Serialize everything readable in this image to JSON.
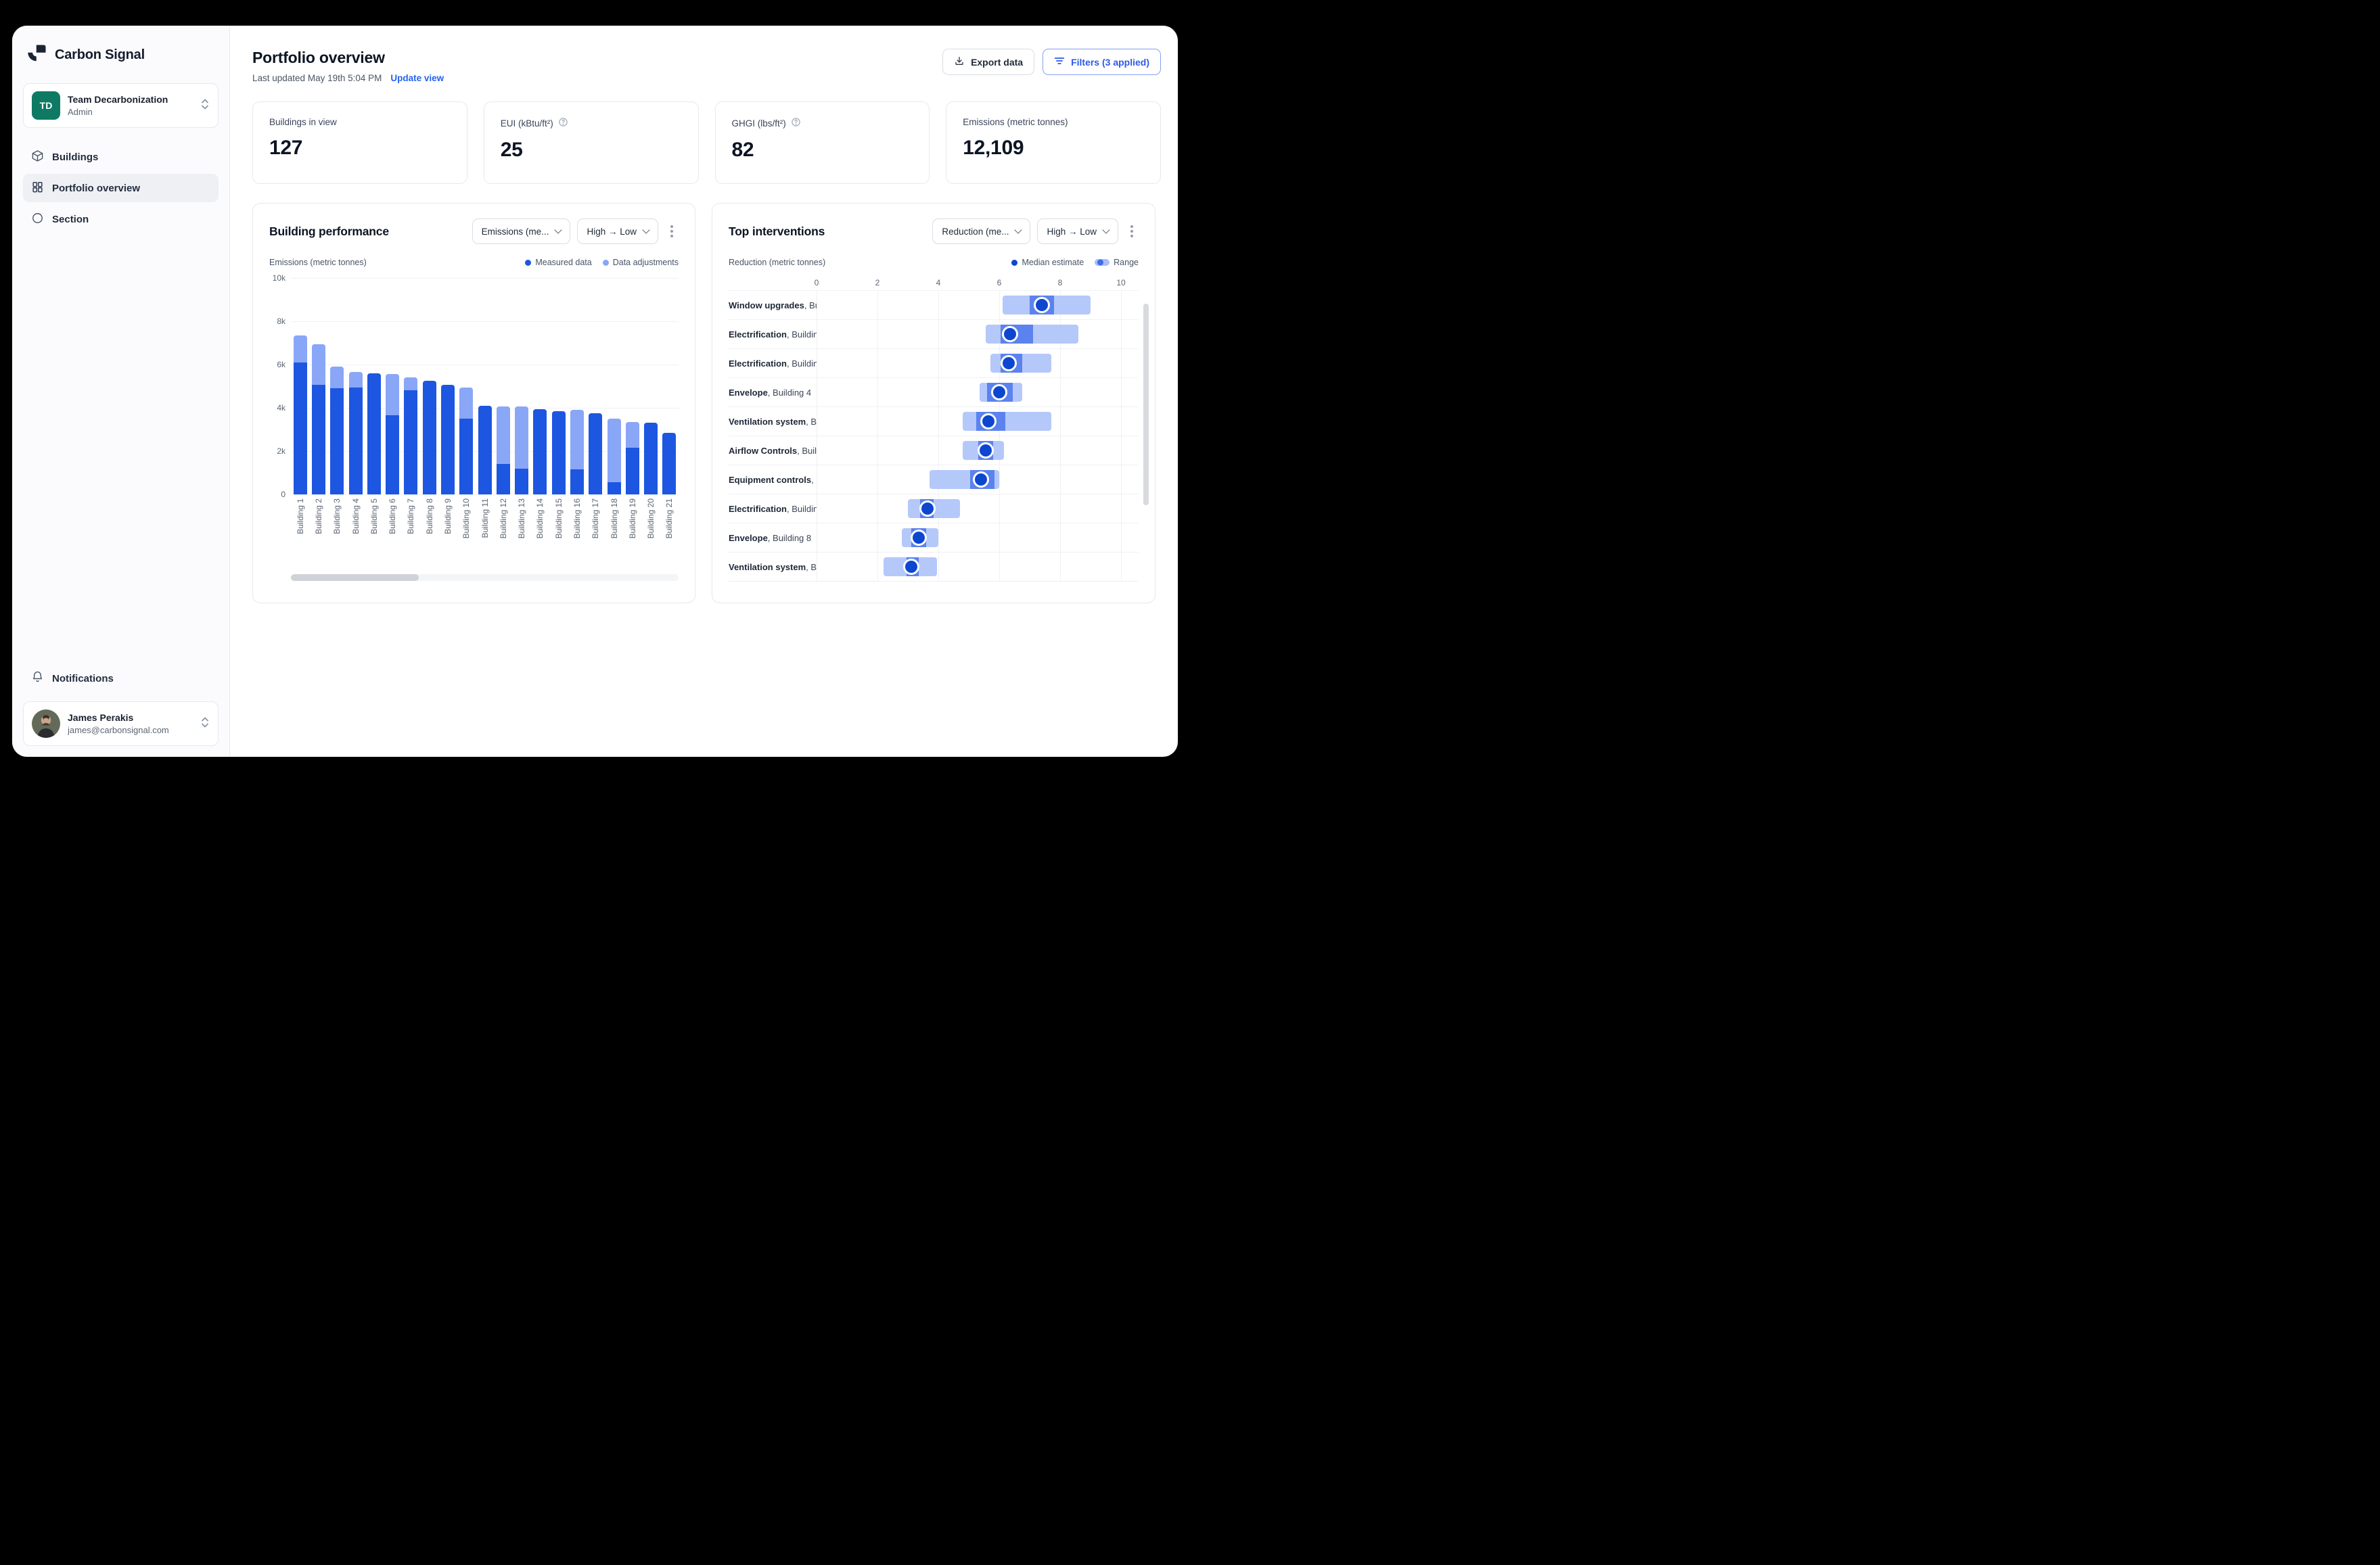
{
  "sidebar": {
    "brand": "Carbon Signal",
    "team": {
      "initials": "TD",
      "name": "Team Decarbonization",
      "role": "Admin"
    },
    "nav": [
      {
        "label": "Buildings",
        "active": false
      },
      {
        "label": "Portfolio overview",
        "active": true
      },
      {
        "label": "Section",
        "active": false
      }
    ],
    "notifications_label": "Notifications",
    "user": {
      "name": "James Perakis",
      "email": "james@carbonsignal.com"
    }
  },
  "header": {
    "title": "Portfolio overview",
    "last_updated": "Last updated May 19th 5:04 PM",
    "update_view_label": "Update view",
    "export_label": "Export data",
    "filters_label": "Filters (3 applied)"
  },
  "stats": [
    {
      "label": "Buildings in view",
      "value": "127"
    },
    {
      "label": "EUI (kBtu/ft²)",
      "value": "25"
    },
    {
      "label": "GHGI (lbs/ft²)",
      "value": "82"
    },
    {
      "label": "Emissions (metric tonnes)",
      "value": "12,109"
    }
  ],
  "performance_panel": {
    "title": "Building performance",
    "metric_dropdown": "Emissions (me...",
    "sort_dropdown": "High → Low",
    "axis_label": "Emissions (metric tonnes)",
    "legend": [
      {
        "label": "Measured data",
        "color": "#1d56e0"
      },
      {
        "label": "Data adjustments",
        "color": "#8aa6f7"
      }
    ]
  },
  "interventions_panel": {
    "title": "Top interventions",
    "metric_dropdown": "Reduction (me...",
    "sort_dropdown": "High → Low",
    "axis_label": "Reduction (metric tonnes)",
    "legend_median": "Median estimate",
    "legend_range": "Range"
  },
  "chart_data": [
    {
      "type": "bar",
      "title": "Building performance",
      "ylabel": "Emissions (metric tonnes)",
      "ylim": [
        0,
        10000
      ],
      "yticks": [
        {
          "v": 10000,
          "label": "10k"
        },
        {
          "v": 8000,
          "label": "8k"
        },
        {
          "v": 6000,
          "label": "6k"
        },
        {
          "v": 4000,
          "label": "4k"
        },
        {
          "v": 2000,
          "label": "2k"
        },
        {
          "v": 0,
          "label": "0"
        }
      ],
      "categories": [
        "Building 1",
        "Building 2",
        "Building 3",
        "Building 4",
        "Building 5",
        "Building 6",
        "Building 7",
        "Building 8",
        "Building 9",
        "Building 10",
        "Building 11",
        "Building 12",
        "Building 13",
        "Building 14",
        "Building 15",
        "Building 16",
        "Building 17",
        "Building 18",
        "Building 19",
        "Building 20",
        "Building 21"
      ],
      "series": [
        {
          "name": "Measured data",
          "values": [
            6100,
            5050,
            4900,
            4950,
            5600,
            3650,
            4800,
            5250,
            5050,
            3500,
            4100,
            1400,
            1200,
            3950,
            3850,
            1150,
            3750,
            550,
            2150,
            3300,
            2850
          ]
        },
        {
          "name": "Data adjustments",
          "values": [
            1250,
            1900,
            1000,
            700,
            0,
            1900,
            600,
            0,
            0,
            1450,
            0,
            2650,
            2850,
            0,
            0,
            2750,
            0,
            2950,
            1200,
            0,
            0
          ]
        }
      ]
    },
    {
      "type": "range-dot",
      "title": "Top interventions",
      "xlabel": "Reduction (metric tonnes)",
      "xlim": [
        0,
        10
      ],
      "xticks": [
        0,
        2,
        4,
        6,
        8,
        10
      ],
      "rows": [
        {
          "name": "Window upgrades",
          "building": "Bui...",
          "range": [
            6.1,
            9.0
          ],
          "band": [
            7.0,
            7.8
          ],
          "median": 7.4
        },
        {
          "name": "Electrification",
          "building": "Buildin...",
          "range": [
            5.55,
            8.6
          ],
          "band": [
            6.05,
            7.1
          ],
          "median": 6.35
        },
        {
          "name": "Electrification",
          "building": "Buildin...",
          "range": [
            5.7,
            7.7
          ],
          "band": [
            6.05,
            6.75
          ],
          "median": 6.3
        },
        {
          "name": "Envelope",
          "building": "Building 4",
          "range": [
            5.35,
            6.75
          ],
          "band": [
            5.6,
            6.45
          ],
          "median": 6.0
        },
        {
          "name": "Ventilation system",
          "building": "Bu...",
          "range": [
            4.8,
            7.7
          ],
          "band": [
            5.25,
            6.2
          ],
          "median": 5.65
        },
        {
          "name": "Airflow Controls",
          "building": "Build...",
          "range": [
            4.8,
            6.15
          ],
          "band": [
            5.3,
            5.8
          ],
          "median": 5.55
        },
        {
          "name": "Equipment controls",
          "building": "B...",
          "range": [
            3.7,
            6.0
          ],
          "band": [
            5.05,
            5.85
          ],
          "median": 5.4
        },
        {
          "name": "Electrification",
          "building": "Buildin...",
          "range": [
            3.0,
            4.7
          ],
          "band": [
            3.4,
            3.85
          ],
          "median": 3.65
        },
        {
          "name": "Envelope",
          "building": "Building 8",
          "range": [
            2.8,
            4.0
          ],
          "band": [
            3.1,
            3.6
          ],
          "median": 3.35
        },
        {
          "name": "Ventilation system",
          "building": "B...",
          "range": [
            2.2,
            3.95
          ],
          "band": [
            2.95,
            3.35
          ],
          "median": 3.1
        }
      ]
    }
  ],
  "colors": {
    "measured": "#1d56e0",
    "adjustments": "#8aa6f7",
    "range_light": "#b5c8fa",
    "range_band": "#5b82ee",
    "median_dot": "#0d47d0",
    "accent_blue": "#2563eb",
    "team_avatar": "#0f7a63"
  }
}
